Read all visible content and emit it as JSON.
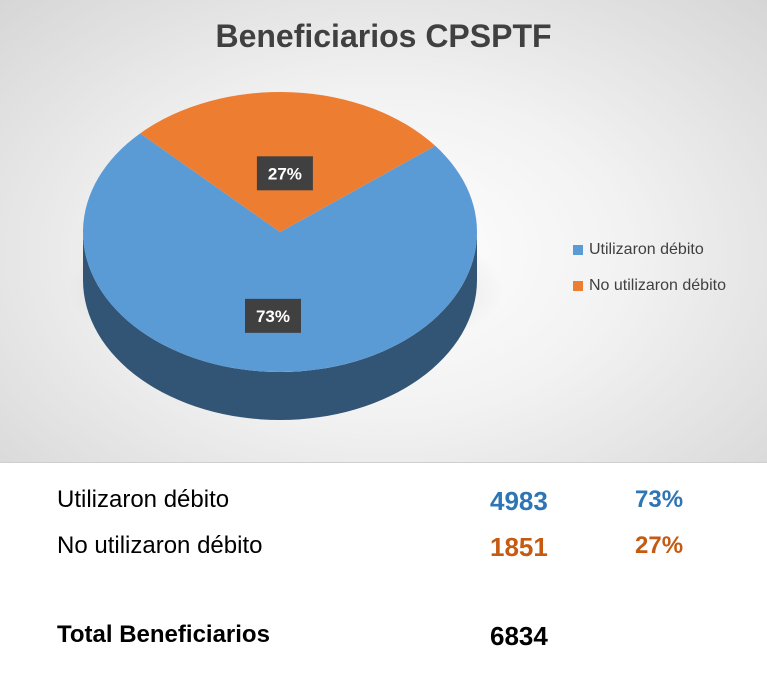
{
  "chart_data": {
    "type": "pie",
    "title": "Beneficiarios CPSPTF",
    "categories": [
      "Utilizaron débito",
      "No utilizaron débito"
    ],
    "values": [
      73,
      27
    ],
    "data_labels": [
      "73%",
      "27%"
    ],
    "colors": [
      "#5b9bd5",
      "#ed7d31"
    ],
    "legend_position": "right",
    "style": "3d"
  },
  "summary": {
    "rows": [
      {
        "label": "Utilizaron débito",
        "count": "4983",
        "percent": "73%",
        "color": "#2e75b6"
      },
      {
        "label": "No utilizaron débito",
        "count": "1851",
        "percent": "27%",
        "color": "#c55a11"
      }
    ],
    "total_label": "Total Beneficiarios",
    "total_value": "6834"
  }
}
